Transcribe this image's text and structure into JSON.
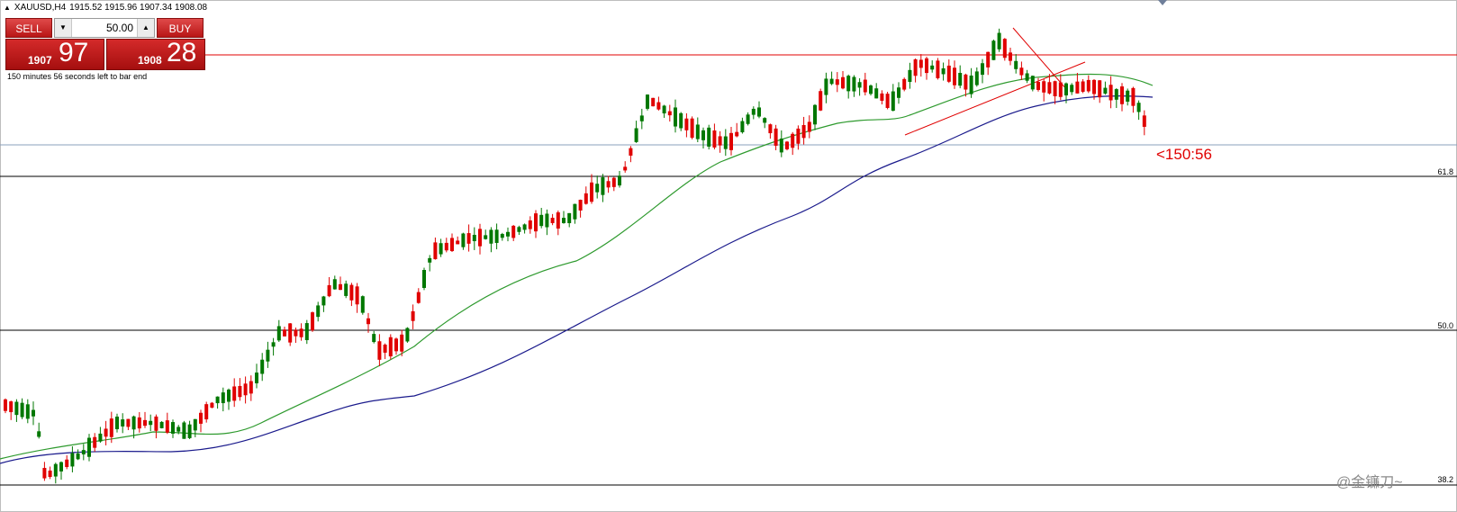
{
  "header": {
    "symbol": "XAUUSD,H4",
    "ohlc": "1915.52 1915.96 1907.34 1908.08"
  },
  "trade_panel": {
    "sell_label": "SELL",
    "buy_label": "BUY",
    "lot_value": "50.00",
    "sell_price_prefix": "1907",
    "sell_price_big": "97",
    "buy_price_prefix": "1908",
    "buy_price_big": "28"
  },
  "bar_end_text": "150 minutes 56 seconds left to bar end",
  "countdown": "<150:56",
  "fib_levels": [
    "61.8",
    "50.0",
    "38.2"
  ],
  "watermark": "@金镰刀~",
  "colors": {
    "bull": "#e00000",
    "bear": "#007700",
    "ma_fast": "#2e9a2e",
    "ma_slow": "#1a1a8c",
    "level_line": "#e00000",
    "bid_line": "#7f9bbf"
  }
}
